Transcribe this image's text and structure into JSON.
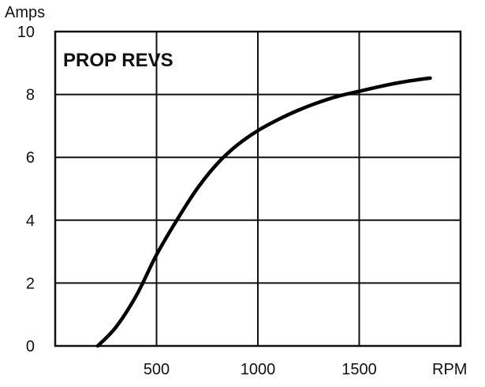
{
  "chart_data": {
    "type": "line",
    "title": "PROP REVS",
    "xlabel": "RPM",
    "ylabel": "Amps",
    "xlim": [
      0,
      2000
    ],
    "ylim": [
      0,
      10
    ],
    "x_ticks": [
      500,
      1000,
      1500
    ],
    "y_ticks": [
      0,
      2,
      4,
      6,
      8,
      10
    ],
    "grid": true,
    "legend": "none",
    "line_color": "#000000",
    "series": [
      {
        "x": [
          210,
          300,
          400,
          500,
          600,
          700,
          800,
          900,
          1000,
          1100,
          1200,
          1300,
          1400,
          1500,
          1600,
          1700,
          1800,
          1850
        ],
        "values": [
          0.0,
          0.6,
          1.6,
          2.9,
          4.0,
          5.0,
          5.8,
          6.4,
          6.85,
          7.2,
          7.5,
          7.75,
          7.95,
          8.1,
          8.25,
          8.38,
          8.48,
          8.52
        ]
      }
    ]
  }
}
